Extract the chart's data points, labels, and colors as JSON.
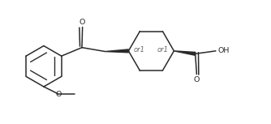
{
  "background_color": "#ffffff",
  "line_color": "#2a2a2a",
  "line_width": 1.1,
  "font_size": 6.8,
  "or1_font_size": 6.0,
  "figsize": [
    3.34,
    1.53
  ],
  "dpi": 100,
  "xlim": [
    0,
    9.5
  ],
  "ylim": [
    0,
    4.0
  ]
}
